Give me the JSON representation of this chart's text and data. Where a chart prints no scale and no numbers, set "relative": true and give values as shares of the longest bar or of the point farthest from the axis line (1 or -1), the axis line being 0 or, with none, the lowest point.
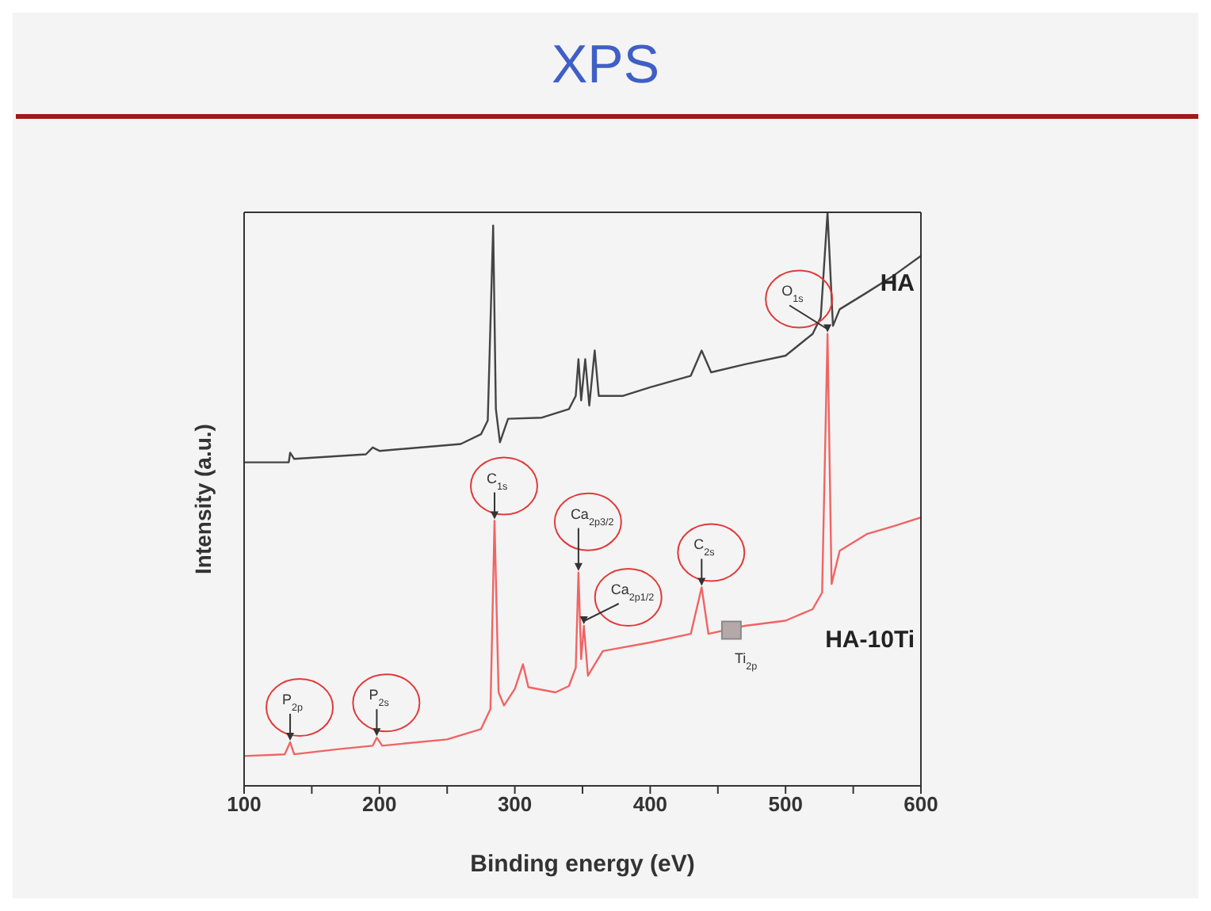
{
  "chart_data": {
    "type": "line",
    "title": "XPS",
    "xlabel": "Binding energy (eV)",
    "ylabel": "Intensity (a.u.)",
    "relative": true,
    "xlim": [
      100,
      600
    ],
    "xticks": [
      100,
      200,
      300,
      400,
      500,
      600,
      {
        "value": 150,
        "label": null
      },
      {
        "value": 250,
        "label": null
      },
      {
        "value": 350,
        "label": null
      },
      {
        "value": 450,
        "label": null
      },
      {
        "value": 550,
        "label": null
      }
    ],
    "marker": "none",
    "series": [
      {
        "name": "HA",
        "color": "#444444",
        "x": [
          100,
          133,
          134,
          137,
          190,
          195,
          200,
          260,
          275,
          280,
          284,
          286,
          289,
          295,
          320,
          340,
          345,
          347,
          349,
          352,
          355,
          359,
          362,
          380,
          400,
          430,
          438,
          445,
          470,
          500,
          520,
          526,
          531,
          535,
          540,
          560,
          580,
          600
        ],
        "values": [
          0.564,
          0.564,
          0.581,
          0.57,
          0.578,
          0.59,
          0.584,
          0.596,
          0.613,
          0.637,
          0.977,
          0.657,
          0.599,
          0.64,
          0.642,
          0.657,
          0.68,
          0.744,
          0.672,
          0.744,
          0.663,
          0.759,
          0.68,
          0.68,
          0.695,
          0.715,
          0.759,
          0.721,
          0.735,
          0.75,
          0.788,
          0.817,
          1,
          0.802,
          0.831,
          0.86,
          0.89,
          0.924
        ]
      },
      {
        "name": "HA-10Ti",
        "color": "#f06464",
        "x": [
          100,
          130,
          134,
          137,
          170,
          195,
          198,
          202,
          250,
          275,
          282,
          285,
          288,
          292,
          300,
          306,
          310,
          330,
          340,
          345,
          347,
          349,
          351,
          354,
          365,
          400,
          430,
          438,
          443,
          470,
          500,
          520,
          527,
          531,
          534,
          540,
          560,
          580,
          600
        ],
        "values": [
          0.052,
          0.055,
          0.076,
          0.055,
          0.064,
          0.07,
          0.084,
          0.07,
          0.081,
          0.099,
          0.134,
          0.462,
          0.163,
          0.14,
          0.169,
          0.212,
          0.172,
          0.163,
          0.174,
          0.206,
          0.372,
          0.221,
          0.279,
          0.192,
          0.235,
          0.25,
          0.265,
          0.346,
          0.265,
          0.279,
          0.288,
          0.308,
          0.337,
          0.788,
          0.352,
          0.41,
          0.439,
          0.453,
          0.468
        ]
      }
    ],
    "annotations": [
      {
        "text": "P$_{2p}$",
        "x": 134,
        "y": 0.076
      },
      {
        "text": "P$_{2s}$",
        "x": 198,
        "y": 0.084
      },
      {
        "text": "C$_{1s}$",
        "x": 285,
        "y": 0.462
      },
      {
        "text": "Ca$_{2p3/2}$",
        "x": 347,
        "y": 0.372
      },
      {
        "text": "Ca$_{2p1/2}$",
        "x": 351,
        "y": 0.279
      },
      {
        "text": "C$_{2s}$",
        "x": 438,
        "y": 0.346
      },
      {
        "text": "Ti$_{2p}$",
        "x": 460,
        "y": 0.27
      },
      {
        "text": "O$_{1s}$",
        "x": 531,
        "y": 0.788
      }
    ]
  }
}
